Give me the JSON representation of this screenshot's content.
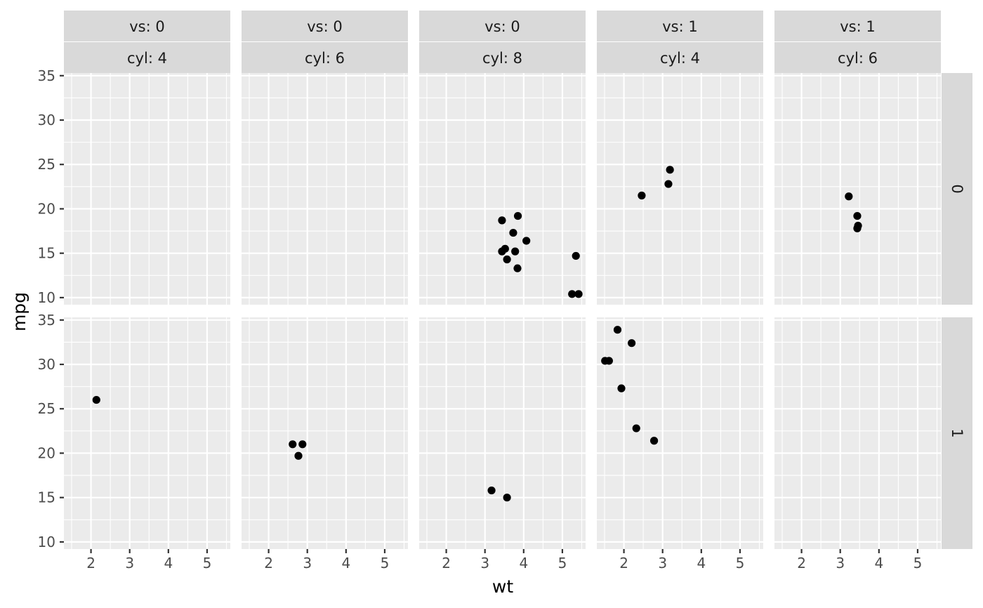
{
  "chart_data": {
    "type": "scatter",
    "xlabel": "wt",
    "ylabel": "mpg",
    "xlim": [
      1.3,
      5.6
    ],
    "ylim": [
      9.2,
      35.3
    ],
    "x_ticks": [
      2,
      3,
      4,
      5
    ],
    "y_ticks": [
      10,
      15,
      20,
      25,
      30,
      35
    ],
    "x_tick_labels": [
      "2",
      "3",
      "4",
      "5"
    ],
    "y_tick_labels": [
      "10",
      "15",
      "20",
      "25",
      "30",
      "35"
    ],
    "grid": true,
    "columns": [
      {
        "label_top": "vs: 0",
        "label_bottom": "cyl: 4"
      },
      {
        "label_top": "vs: 0",
        "label_bottom": "cyl: 6"
      },
      {
        "label_top": "vs: 0",
        "label_bottom": "cyl: 8"
      },
      {
        "label_top": "vs: 1",
        "label_bottom": "cyl: 4"
      },
      {
        "label_top": "vs: 1",
        "label_bottom": "cyl: 6"
      }
    ],
    "rows": [
      {
        "label": "0"
      },
      {
        "label": "1"
      }
    ],
    "panels": [
      {
        "row": 0,
        "col": 0,
        "points": []
      },
      {
        "row": 0,
        "col": 1,
        "points": []
      },
      {
        "row": 0,
        "col": 2,
        "points": [
          [
            3.44,
            18.7
          ],
          [
            3.57,
            14.3
          ],
          [
            4.07,
            16.4
          ],
          [
            3.73,
            17.3
          ],
          [
            3.78,
            15.2
          ],
          [
            5.25,
            10.4
          ],
          [
            5.42,
            10.4
          ],
          [
            5.35,
            14.7
          ],
          [
            3.52,
            15.5
          ],
          [
            3.44,
            15.2
          ],
          [
            3.84,
            13.3
          ],
          [
            3.85,
            19.2
          ]
        ]
      },
      {
        "row": 0,
        "col": 3,
        "points": [
          [
            2.46,
            21.5
          ],
          [
            3.15,
            22.8
          ],
          [
            3.19,
            24.4
          ]
        ]
      },
      {
        "row": 0,
        "col": 4,
        "points": [
          [
            3.22,
            21.4
          ],
          [
            3.44,
            19.2
          ],
          [
            3.44,
            17.8
          ],
          [
            3.46,
            18.1
          ]
        ]
      },
      {
        "row": 1,
        "col": 0,
        "points": [
          [
            2.14,
            26.0
          ]
        ]
      },
      {
        "row": 1,
        "col": 1,
        "points": [
          [
            2.62,
            21.0
          ],
          [
            2.875,
            21.0
          ],
          [
            2.77,
            19.7
          ]
        ]
      },
      {
        "row": 1,
        "col": 2,
        "points": [
          [
            3.17,
            15.8
          ],
          [
            3.57,
            15.0
          ]
        ]
      },
      {
        "row": 1,
        "col": 3,
        "points": [
          [
            1.513,
            30.4
          ],
          [
            1.615,
            30.4
          ],
          [
            1.835,
            33.9
          ],
          [
            2.2,
            32.4
          ],
          [
            1.935,
            27.3
          ],
          [
            2.32,
            22.8
          ],
          [
            2.78,
            21.4
          ]
        ]
      },
      {
        "row": 1,
        "col": 4,
        "points": []
      }
    ]
  }
}
